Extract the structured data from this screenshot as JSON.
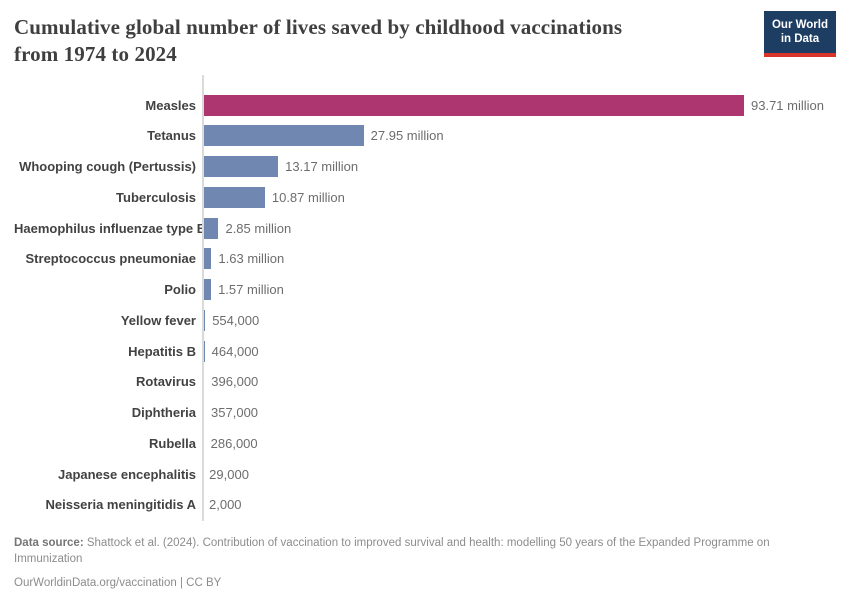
{
  "header": {
    "title_line1": "Cumulative global number of lives saved by childhood vaccinations",
    "title_line2": "from 1974 to 2024",
    "logo": {
      "line1": "Our World",
      "line2": "in Data"
    }
  },
  "chart_data": {
    "type": "bar",
    "orientation": "horizontal",
    "title": "Cumulative global number of lives saved by childhood vaccinations from 1974 to 2024",
    "x_axis": {
      "min": 0,
      "max": 93710000,
      "visible": false
    },
    "grid": false,
    "legend": "none",
    "highlight_color": "#ad3570",
    "default_color": "#7087b1",
    "axis_line_color": "#dadada",
    "bars": [
      {
        "label": "Measles",
        "value": 93710000,
        "value_label": "93.71 million",
        "highlight": true
      },
      {
        "label": "Tetanus",
        "value": 27950000,
        "value_label": "27.95 million",
        "highlight": false
      },
      {
        "label": "Whooping cough (Pertussis)",
        "value": 13170000,
        "value_label": "13.17 million",
        "highlight": false
      },
      {
        "label": "Tuberculosis",
        "value": 10870000,
        "value_label": "10.87 million",
        "highlight": false
      },
      {
        "label": "Haemophilus influenzae type B",
        "value": 2850000,
        "value_label": "2.85 million",
        "highlight": false
      },
      {
        "label": "Streptococcus pneumoniae",
        "value": 1630000,
        "value_label": "1.63 million",
        "highlight": false
      },
      {
        "label": "Polio",
        "value": 1570000,
        "value_label": "1.57 million",
        "highlight": false
      },
      {
        "label": "Yellow fever",
        "value": 554000,
        "value_label": "554,000",
        "highlight": false
      },
      {
        "label": "Hepatitis B",
        "value": 464000,
        "value_label": "464,000",
        "highlight": false
      },
      {
        "label": "Rotavirus",
        "value": 396000,
        "value_label": "396,000",
        "highlight": false
      },
      {
        "label": "Diphtheria",
        "value": 357000,
        "value_label": "357,000",
        "highlight": false
      },
      {
        "label": "Rubella",
        "value": 286000,
        "value_label": "286,000",
        "highlight": false
      },
      {
        "label": "Japanese encephalitis",
        "value": 29000,
        "value_label": "29,000",
        "highlight": false
      },
      {
        "label": "Neisseria meningitidis A",
        "value": 2000,
        "value_label": "2,000",
        "highlight": false
      }
    ]
  },
  "footer": {
    "source_label": "Data source:",
    "source_text": " Shattock et al. (2024). Contribution of vaccination to improved survival and health: modelling 50 years of the Expanded Programme on Immunization",
    "attribution": "OurWorldinData.org/vaccination | CC BY"
  }
}
